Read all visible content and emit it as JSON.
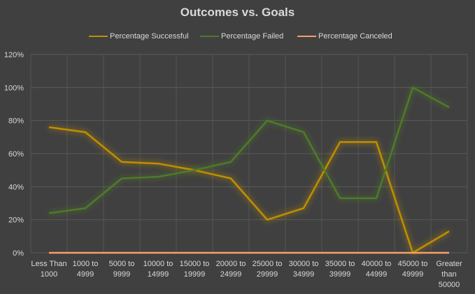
{
  "chart_data": {
    "type": "line",
    "title": "Outcomes vs. Goals",
    "xlabel": "",
    "ylabel": "",
    "ylim": [
      0,
      1.2
    ],
    "ytick_labels": [
      "0%",
      "20%",
      "40%",
      "60%",
      "80%",
      "100%",
      "120%"
    ],
    "grid": true,
    "legend_position": "top",
    "categories": [
      "Less Than 1000",
      "1000 to 4999",
      "5000 to 9999",
      "10000 to 14999",
      "15000 to 19999",
      "20000 to 24999",
      "25000 to 29999",
      "30000 to 34999",
      "35000 to 39999",
      "40000 to 44999",
      "45000 to 49999",
      "Greater than 50000"
    ],
    "category_lines": [
      [
        "Less Than",
        "1000"
      ],
      [
        "1000 to",
        "4999"
      ],
      [
        "5000 to",
        "9999"
      ],
      [
        "10000 to",
        "14999"
      ],
      [
        "15000 to",
        "19999"
      ],
      [
        "20000 to",
        "24999"
      ],
      [
        "25000 to",
        "29999"
      ],
      [
        "30000 to",
        "34999"
      ],
      [
        "35000 to",
        "39999"
      ],
      [
        "40000 to",
        "44999"
      ],
      [
        "45000 to",
        "49999"
      ],
      [
        "Greater",
        "than",
        "50000"
      ]
    ],
    "series": [
      {
        "name": "Percentage Successful",
        "color": "#bf8f00",
        "values": [
          0.76,
          0.73,
          0.55,
          0.54,
          0.5,
          0.45,
          0.2,
          0.27,
          0.67,
          0.67,
          0.0,
          0.13
        ]
      },
      {
        "name": "Percentage Failed",
        "color": "#4f7a28",
        "values": [
          0.24,
          0.27,
          0.45,
          0.46,
          0.5,
          0.55,
          0.8,
          0.73,
          0.33,
          0.33,
          1.0,
          0.88
        ]
      },
      {
        "name": "Percentage Canceled",
        "color": "#f4a06a",
        "values": [
          0,
          0,
          0,
          0,
          0,
          0,
          0,
          0,
          0,
          0,
          0,
          0
        ]
      }
    ]
  }
}
